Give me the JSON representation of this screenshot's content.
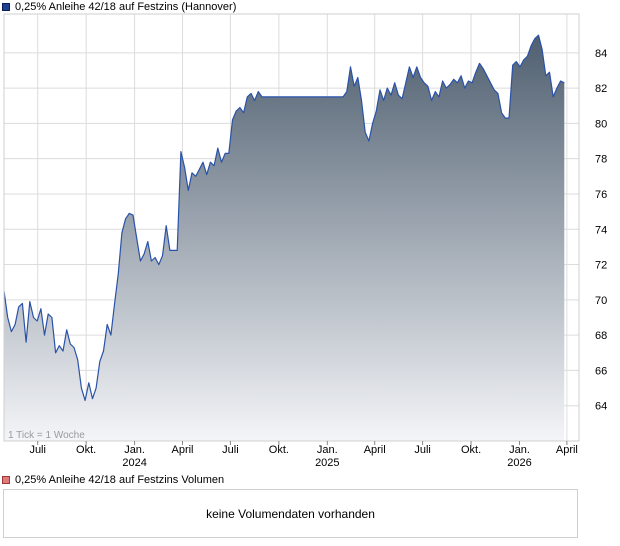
{
  "price_legend": "0,25% Anleihe 42/18 auf Festzins (Hannover)",
  "volume_legend": "0,25% Anleihe 42/18 auf Festzins Volumen",
  "tick_note": "1 Tick = 1 Woche",
  "volume_message": "keine Volumendaten vorhanden",
  "colors": {
    "line": "#2a52a8",
    "fill_top": "#4f5f70",
    "fill_bottom": "#f4f5f8",
    "grid": "#dcdcdc",
    "frame": "#cfcfcf"
  },
  "chart_data": {
    "type": "area",
    "title": "0,25% Anleihe 42/18 auf Festzins (Hannover)",
    "xlabel": "",
    "ylabel": "",
    "ylim": [
      62.0,
      86.2
    ],
    "y_ticks": [
      64,
      66,
      68,
      70,
      72,
      74,
      76,
      78,
      80,
      82,
      84
    ],
    "x_range": [
      "2023-04-28",
      "2026-04-24"
    ],
    "x_ticks": [
      {
        "date": "2023-07-01",
        "label": "Juli",
        "year": ""
      },
      {
        "date": "2023-10-01",
        "label": "Okt.",
        "year": ""
      },
      {
        "date": "2024-01-01",
        "label": "Jan.",
        "year": "2024"
      },
      {
        "date": "2024-04-01",
        "label": "April",
        "year": ""
      },
      {
        "date": "2024-07-01",
        "label": "Juli",
        "year": ""
      },
      {
        "date": "2024-10-01",
        "label": "Okt.",
        "year": ""
      },
      {
        "date": "2025-01-01",
        "label": "Jan.",
        "year": "2025"
      },
      {
        "date": "2025-04-01",
        "label": "April",
        "year": ""
      },
      {
        "date": "2025-07-01",
        "label": "Juli",
        "year": ""
      },
      {
        "date": "2025-10-01",
        "label": "Okt.",
        "year": ""
      },
      {
        "date": "2026-01-01",
        "label": "Jan.",
        "year": "2026"
      },
      {
        "date": "2026-04-01",
        "label": "April",
        "year": ""
      }
    ],
    "grid": true,
    "series": [
      {
        "name": "0,25% Anleihe 42/18 auf Festzins (Hannover)",
        "points": [
          [
            "2023-04-28",
            70.5
          ],
          [
            "2023-05-05",
            69.0
          ],
          [
            "2023-05-12",
            68.2
          ],
          [
            "2023-05-19",
            68.6
          ],
          [
            "2023-05-26",
            69.6
          ],
          [
            "2023-06-02",
            69.8
          ],
          [
            "2023-06-09",
            67.6
          ],
          [
            "2023-06-16",
            69.9
          ],
          [
            "2023-06-23",
            69.0
          ],
          [
            "2023-06-30",
            68.8
          ],
          [
            "2023-07-07",
            69.5
          ],
          [
            "2023-07-14",
            68.0
          ],
          [
            "2023-07-21",
            69.2
          ],
          [
            "2023-07-28",
            69.0
          ],
          [
            "2023-08-04",
            67.0
          ],
          [
            "2023-08-11",
            67.4
          ],
          [
            "2023-08-18",
            67.1
          ],
          [
            "2023-08-25",
            68.3
          ],
          [
            "2023-09-01",
            67.5
          ],
          [
            "2023-09-08",
            67.3
          ],
          [
            "2023-09-15",
            66.6
          ],
          [
            "2023-09-22",
            65.0
          ],
          [
            "2023-09-29",
            64.3
          ],
          [
            "2023-10-06",
            65.3
          ],
          [
            "2023-10-13",
            64.4
          ],
          [
            "2023-10-20",
            65.0
          ],
          [
            "2023-10-27",
            66.5
          ],
          [
            "2023-11-03",
            67.1
          ],
          [
            "2023-11-10",
            68.6
          ],
          [
            "2023-11-17",
            68.0
          ],
          [
            "2023-11-24",
            69.8
          ],
          [
            "2023-12-01",
            71.5
          ],
          [
            "2023-12-08",
            73.8
          ],
          [
            "2023-12-15",
            74.6
          ],
          [
            "2023-12-22",
            74.9
          ],
          [
            "2023-12-29",
            74.8
          ],
          [
            "2024-01-05",
            73.5
          ],
          [
            "2024-01-12",
            72.2
          ],
          [
            "2024-01-19",
            72.6
          ],
          [
            "2024-01-26",
            73.3
          ],
          [
            "2024-02-02",
            72.2
          ],
          [
            "2024-02-09",
            72.4
          ],
          [
            "2024-02-16",
            72.0
          ],
          [
            "2024-02-23",
            72.5
          ],
          [
            "2024-03-01",
            74.2
          ],
          [
            "2024-03-08",
            72.8
          ],
          [
            "2024-03-15",
            72.8
          ],
          [
            "2024-03-22",
            72.8
          ],
          [
            "2024-03-29",
            78.4
          ],
          [
            "2024-04-05",
            77.5
          ],
          [
            "2024-04-12",
            76.2
          ],
          [
            "2024-04-19",
            77.2
          ],
          [
            "2024-04-26",
            77.0
          ],
          [
            "2024-05-03",
            77.4
          ],
          [
            "2024-05-10",
            77.8
          ],
          [
            "2024-05-17",
            77.1
          ],
          [
            "2024-05-24",
            77.8
          ],
          [
            "2024-05-31",
            77.6
          ],
          [
            "2024-06-07",
            78.6
          ],
          [
            "2024-06-14",
            77.8
          ],
          [
            "2024-06-21",
            78.3
          ],
          [
            "2024-06-28",
            78.3
          ],
          [
            "2024-07-05",
            80.2
          ],
          [
            "2024-07-12",
            80.7
          ],
          [
            "2024-07-19",
            80.9
          ],
          [
            "2024-07-26",
            80.6
          ],
          [
            "2024-08-02",
            81.5
          ],
          [
            "2024-08-09",
            81.7
          ],
          [
            "2024-08-16",
            81.3
          ],
          [
            "2024-08-23",
            81.8
          ],
          [
            "2024-08-30",
            81.5
          ],
          [
            "2024-09-13",
            81.5
          ],
          [
            "2024-09-27",
            81.5
          ],
          [
            "2024-10-11",
            81.5
          ],
          [
            "2024-10-25",
            81.5
          ],
          [
            "2024-11-08",
            81.5
          ],
          [
            "2024-11-22",
            81.5
          ],
          [
            "2024-12-06",
            81.5
          ],
          [
            "2024-12-20",
            81.5
          ],
          [
            "2025-01-03",
            81.5
          ],
          [
            "2025-01-17",
            81.5
          ],
          [
            "2025-01-31",
            81.5
          ],
          [
            "2025-02-07",
            81.8
          ],
          [
            "2025-02-14",
            83.2
          ],
          [
            "2025-02-21",
            82.1
          ],
          [
            "2025-02-28",
            82.6
          ],
          [
            "2025-03-07",
            81.3
          ],
          [
            "2025-03-14",
            79.5
          ],
          [
            "2025-03-21",
            79.0
          ],
          [
            "2025-03-28",
            80.0
          ],
          [
            "2025-04-04",
            80.7
          ],
          [
            "2025-04-11",
            81.9
          ],
          [
            "2025-04-18",
            81.3
          ],
          [
            "2025-04-25",
            82.0
          ],
          [
            "2025-05-02",
            81.6
          ],
          [
            "2025-05-09",
            82.3
          ],
          [
            "2025-05-16",
            81.6
          ],
          [
            "2025-05-23",
            81.4
          ],
          [
            "2025-05-30",
            82.3
          ],
          [
            "2025-06-06",
            83.2
          ],
          [
            "2025-06-13",
            82.6
          ],
          [
            "2025-06-20",
            83.2
          ],
          [
            "2025-06-27",
            82.6
          ],
          [
            "2025-07-04",
            82.3
          ],
          [
            "2025-07-11",
            82.1
          ],
          [
            "2025-07-18",
            81.3
          ],
          [
            "2025-07-25",
            81.8
          ],
          [
            "2025-08-01",
            81.5
          ],
          [
            "2025-08-08",
            82.4
          ],
          [
            "2025-08-15",
            82.0
          ],
          [
            "2025-08-22",
            82.2
          ],
          [
            "2025-08-29",
            82.5
          ],
          [
            "2025-09-05",
            82.3
          ],
          [
            "2025-09-12",
            82.7
          ],
          [
            "2025-09-19",
            82.0
          ],
          [
            "2025-09-26",
            82.4
          ],
          [
            "2025-10-03",
            82.3
          ],
          [
            "2025-10-10",
            82.9
          ],
          [
            "2025-10-17",
            83.4
          ],
          [
            "2025-10-24",
            83.1
          ],
          [
            "2025-10-31",
            82.7
          ],
          [
            "2025-11-07",
            82.3
          ],
          [
            "2025-11-14",
            81.9
          ],
          [
            "2025-11-21",
            81.7
          ],
          [
            "2025-11-28",
            80.6
          ],
          [
            "2025-12-05",
            80.3
          ],
          [
            "2025-12-12",
            80.3
          ],
          [
            "2025-12-19",
            83.3
          ],
          [
            "2025-12-26",
            83.5
          ],
          [
            "2026-01-02",
            83.2
          ],
          [
            "2026-01-09",
            83.6
          ],
          [
            "2026-01-16",
            83.8
          ],
          [
            "2026-01-23",
            84.4
          ],
          [
            "2026-01-30",
            84.8
          ],
          [
            "2026-02-06",
            85.0
          ],
          [
            "2026-02-13",
            84.2
          ],
          [
            "2026-02-20",
            82.7
          ],
          [
            "2026-02-27",
            82.9
          ],
          [
            "2026-03-06",
            81.5
          ],
          [
            "2026-03-13",
            82.0
          ],
          [
            "2026-03-20",
            82.4
          ],
          [
            "2026-03-27",
            82.3
          ]
        ]
      }
    ]
  }
}
